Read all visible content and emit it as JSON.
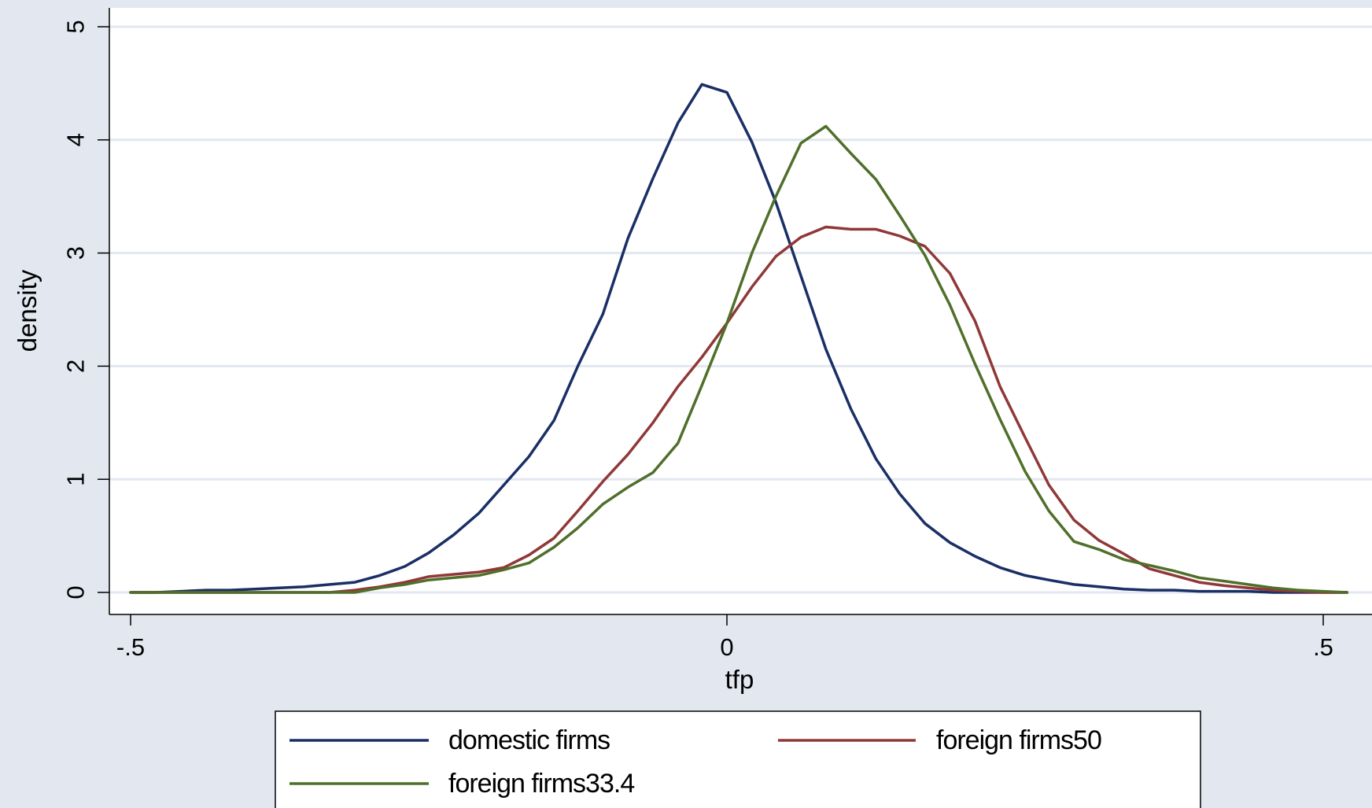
{
  "chart_data": {
    "type": "line",
    "xlabel": "tfp",
    "ylabel": "density",
    "xlim": [
      -0.52,
      0.52
    ],
    "ylim": [
      -0.2,
      5.2
    ],
    "xticks": [
      {
        "value": -0.5,
        "label": "-.5"
      },
      {
        "value": 0,
        "label": "0"
      },
      {
        "value": 0.5,
        "label": ".5"
      }
    ],
    "yticks": [
      {
        "value": 0,
        "label": "0"
      },
      {
        "value": 1,
        "label": "1"
      },
      {
        "value": 2,
        "label": "2"
      },
      {
        "value": 3,
        "label": "3"
      },
      {
        "value": 4,
        "label": "4"
      },
      {
        "value": 5,
        "label": "5"
      }
    ],
    "grid": "horizontal",
    "legend_position": "bottom",
    "background_color": "#e2e7f0",
    "plot_background_color": "#ffffff",
    "grid_color": "#e2e7f0",
    "series": [
      {
        "name": "domestic firms",
        "color": "#1a2f66",
        "x": [
          -0.5,
          -0.479,
          -0.458,
          -0.437,
          -0.417,
          -0.396,
          -0.375,
          -0.354,
          -0.333,
          -0.312,
          -0.291,
          -0.27,
          -0.25,
          -0.229,
          -0.208,
          -0.187,
          -0.166,
          -0.145,
          -0.125,
          -0.104,
          -0.083,
          -0.062,
          -0.041,
          -0.021,
          0.0,
          0.021,
          0.041,
          0.062,
          0.083,
          0.104,
          0.125,
          0.145,
          0.166,
          0.187,
          0.208,
          0.229,
          0.25,
          0.27,
          0.291,
          0.312,
          0.333,
          0.354,
          0.375,
          0.396,
          0.417,
          0.437,
          0.458,
          0.479,
          0.5,
          0.52
        ],
        "y": [
          0.0,
          0.0,
          0.01,
          0.02,
          0.02,
          0.03,
          0.04,
          0.05,
          0.07,
          0.09,
          0.15,
          0.23,
          0.35,
          0.51,
          0.7,
          0.95,
          1.2,
          1.52,
          2.0,
          2.46,
          3.13,
          3.66,
          4.15,
          4.49,
          4.42,
          3.98,
          3.45,
          2.8,
          2.15,
          1.62,
          1.18,
          0.87,
          0.61,
          0.44,
          0.32,
          0.22,
          0.15,
          0.11,
          0.07,
          0.05,
          0.03,
          0.02,
          0.02,
          0.01,
          0.01,
          0.01,
          0.0,
          0.0,
          0.0,
          0.0
        ]
      },
      {
        "name": "foreign firms50",
        "color": "#903838",
        "x": [
          -0.5,
          -0.479,
          -0.458,
          -0.437,
          -0.417,
          -0.396,
          -0.375,
          -0.354,
          -0.333,
          -0.312,
          -0.291,
          -0.27,
          -0.25,
          -0.229,
          -0.208,
          -0.187,
          -0.166,
          -0.145,
          -0.125,
          -0.104,
          -0.083,
          -0.062,
          -0.041,
          -0.021,
          0.0,
          0.021,
          0.041,
          0.062,
          0.083,
          0.104,
          0.125,
          0.145,
          0.166,
          0.187,
          0.208,
          0.229,
          0.25,
          0.27,
          0.291,
          0.312,
          0.333,
          0.354,
          0.375,
          0.396,
          0.417,
          0.437,
          0.458,
          0.479,
          0.5,
          0.52
        ],
        "y": [
          0.0,
          0.0,
          0.0,
          0.0,
          0.0,
          0.0,
          0.0,
          0.0,
          0.0,
          0.02,
          0.05,
          0.09,
          0.14,
          0.16,
          0.18,
          0.22,
          0.33,
          0.48,
          0.72,
          0.98,
          1.22,
          1.5,
          1.82,
          2.08,
          2.38,
          2.7,
          2.97,
          3.14,
          3.23,
          3.21,
          3.21,
          3.15,
          3.06,
          2.82,
          2.4,
          1.82,
          1.37,
          0.95,
          0.64,
          0.46,
          0.34,
          0.21,
          0.15,
          0.09,
          0.06,
          0.04,
          0.02,
          0.01,
          0.0,
          0.0
        ]
      },
      {
        "name": "foreign firms33.4",
        "color": "#4f6f2a",
        "x": [
          -0.5,
          -0.479,
          -0.458,
          -0.437,
          -0.417,
          -0.396,
          -0.375,
          -0.354,
          -0.333,
          -0.312,
          -0.291,
          -0.27,
          -0.25,
          -0.229,
          -0.208,
          -0.187,
          -0.166,
          -0.145,
          -0.125,
          -0.104,
          -0.083,
          -0.062,
          -0.041,
          -0.021,
          0.0,
          0.021,
          0.041,
          0.062,
          0.083,
          0.104,
          0.125,
          0.145,
          0.166,
          0.187,
          0.208,
          0.229,
          0.25,
          0.27,
          0.291,
          0.312,
          0.333,
          0.354,
          0.375,
          0.396,
          0.417,
          0.437,
          0.458,
          0.479,
          0.5,
          0.52
        ],
        "y": [
          0.0,
          0.0,
          0.0,
          0.0,
          0.0,
          0.0,
          0.0,
          0.0,
          0.0,
          0.0,
          0.04,
          0.07,
          0.11,
          0.13,
          0.15,
          0.2,
          0.26,
          0.4,
          0.57,
          0.78,
          0.93,
          1.06,
          1.32,
          1.83,
          2.38,
          3.0,
          3.5,
          3.97,
          4.12,
          3.88,
          3.65,
          3.33,
          2.98,
          2.54,
          2.02,
          1.53,
          1.07,
          0.72,
          0.45,
          0.38,
          0.29,
          0.24,
          0.19,
          0.13,
          0.1,
          0.07,
          0.04,
          0.02,
          0.01,
          0.0
        ]
      }
    ]
  }
}
